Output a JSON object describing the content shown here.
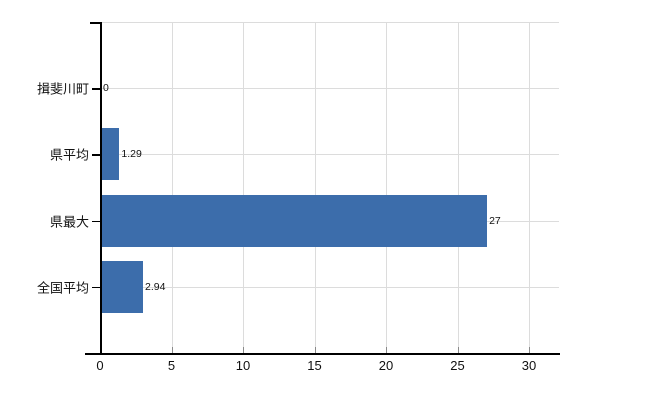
{
  "chart_data": {
    "type": "bar",
    "orientation": "horizontal",
    "title": "",
    "xlabel": "",
    "ylabel": "",
    "categories": [
      "揖斐川町",
      "県平均",
      "県最大",
      "全国平均"
    ],
    "values": [
      0,
      1.29,
      27,
      2.94
    ],
    "value_labels": [
      "0",
      "1.29",
      "27",
      "2.94"
    ],
    "x_ticks": [
      0,
      5,
      10,
      15,
      20,
      25,
      30
    ],
    "x_tick_labels": [
      "0",
      "5",
      "10",
      "15",
      "20",
      "25",
      "30"
    ],
    "xlim": [
      0,
      32.1
    ],
    "grid": true,
    "legend": "none",
    "colors": {
      "bar": "#3c6dab",
      "gridline": "#dcdcdc",
      "axis": "#000000",
      "text": "#111111",
      "background": "#ffffff"
    }
  }
}
